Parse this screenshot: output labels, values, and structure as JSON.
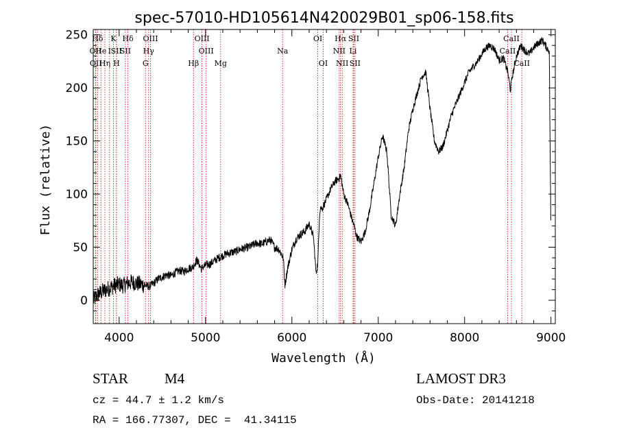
{
  "chart_data": {
    "type": "line",
    "title": "spec-57010-HD105614N420029B01_sp06-158.fits",
    "xlabel": "Wavelength (Å)",
    "ylabel": "Flux (relative)",
    "xlim": [
      3700,
      9050
    ],
    "ylim": [
      -22,
      255
    ],
    "xticks": [
      4000,
      5000,
      6000,
      7000,
      8000,
      9000
    ],
    "yticks": [
      0,
      50,
      100,
      150,
      200,
      250
    ],
    "grid": false,
    "series": [
      {
        "name": "spectrum",
        "x": [
          3700,
          3750,
          3800,
          3850,
          3900,
          3950,
          4000,
          4050,
          4100,
          4150,
          4200,
          4250,
          4300,
          4350,
          4400,
          4450,
          4500,
          4550,
          4600,
          4650,
          4700,
          4750,
          4800,
          4850,
          4900,
          4950,
          5000,
          5050,
          5100,
          5150,
          5200,
          5250,
          5300,
          5350,
          5400,
          5450,
          5500,
          5550,
          5600,
          5650,
          5700,
          5750,
          5800,
          5850,
          5900,
          5920,
          5950,
          6000,
          6050,
          6100,
          6150,
          6200,
          6250,
          6280,
          6300,
          6320,
          6330,
          6350,
          6400,
          6450,
          6500,
          6550,
          6563,
          6580,
          6600,
          6650,
          6700,
          6720,
          6750,
          6800,
          6850,
          6900,
          6950,
          7000,
          7050,
          7100,
          7150,
          7200,
          7250,
          7300,
          7350,
          7400,
          7450,
          7500,
          7550,
          7600,
          7650,
          7700,
          7750,
          7800,
          7850,
          7900,
          7950,
          8000,
          8050,
          8100,
          8150,
          8200,
          8250,
          8300,
          8350,
          8400,
          8450,
          8500,
          8530,
          8550,
          8600,
          8650,
          8700,
          8750,
          8800,
          8850,
          8900,
          8950,
          8980,
          9000
        ],
        "values": [
          0,
          5,
          8,
          10,
          12,
          14,
          15,
          14,
          16,
          17,
          16,
          15,
          14,
          13,
          16,
          20,
          22,
          24,
          23,
          26,
          28,
          27,
          30,
          31,
          38,
          30,
          33,
          34,
          37,
          40,
          42,
          44,
          45,
          46,
          48,
          49,
          50,
          52,
          54,
          53,
          55,
          57,
          50,
          48,
          40,
          15,
          30,
          48,
          58,
          62,
          65,
          72,
          60,
          25,
          35,
          80,
          88,
          86,
          95,
          105,
          112,
          115,
          118,
          110,
          100,
          90,
          75,
          70,
          60,
          55,
          65,
          85,
          110,
          135,
          155,
          140,
          80,
          70,
          100,
          125,
          160,
          180,
          195,
          210,
          215,
          180,
          150,
          140,
          145,
          160,
          175,
          185,
          195,
          205,
          215,
          220,
          225,
          232,
          238,
          240,
          236,
          226,
          228,
          215,
          198,
          210,
          230,
          240,
          235,
          232,
          238,
          242,
          245,
          238,
          235,
          55
        ]
      }
    ],
    "line_markers": [
      {
        "label": "Hδ",
        "x": 3750,
        "row": 1
      },
      {
        "label": "OII",
        "x": 3727,
        "row": 2
      },
      {
        "label": "OII",
        "x": 3730,
        "row": 3
      },
      {
        "label": "He",
        "x": 3789,
        "row": 2
      },
      {
        "label": "Hη",
        "x": 3835,
        "row": 3
      },
      {
        "label": "K",
        "x": 3934,
        "row": 1
      },
      {
        "label": "I",
        "x": 3889,
        "row": 2
      },
      {
        "label": "SII",
        "x": 3968,
        "row": 2
      },
      {
        "label": "H",
        "x": 3969,
        "row": 3
      },
      {
        "label": "Hδ",
        "x": 4102,
        "row": 1
      },
      {
        "label": "SII",
        "x": 4072,
        "row": 2
      },
      {
        "label": "OIII",
        "x": 4363,
        "row": 1
      },
      {
        "label": "Hγ",
        "x": 4341,
        "row": 2
      },
      {
        "label": "G",
        "x": 4305,
        "row": 3
      },
      {
        "label": "Hβ",
        "x": 4861,
        "row": 3
      },
      {
        "label": "OIII",
        "x": 4959,
        "row": 1
      },
      {
        "label": "OIII",
        "x": 5007,
        "row": 2
      },
      {
        "label": "Mg",
        "x": 5175,
        "row": 3
      },
      {
        "label": "Na",
        "x": 5893,
        "row": 2
      },
      {
        "label": "OI",
        "x": 6300,
        "row": 1
      },
      {
        "label": "OI",
        "x": 6363,
        "row": 3
      },
      {
        "label": "Hα",
        "x": 6563,
        "row": 1
      },
      {
        "label": "NII",
        "x": 6548,
        "row": 2
      },
      {
        "label": "NII",
        "x": 6583,
        "row": 3
      },
      {
        "label": "SII",
        "x": 6716,
        "row": 1
      },
      {
        "label": "Li",
        "x": 6708,
        "row": 2
      },
      {
        "label": "SII",
        "x": 6731,
        "row": 3
      },
      {
        "label": "CaII",
        "x": 8542,
        "row": 1
      },
      {
        "label": "CaII",
        "x": 8498,
        "row": 2
      },
      {
        "label": "CaII",
        "x": 8662,
        "row": 3
      }
    ]
  },
  "info": {
    "object_class": "STAR",
    "subclass": "M4",
    "survey": "LAMOST DR3",
    "redshift": "cz = 44.7 ± 1.2 km/s",
    "obs_date": "Obs-Date: 20141218",
    "coords": "RA = 166.77307, DEC =  41.34115"
  }
}
